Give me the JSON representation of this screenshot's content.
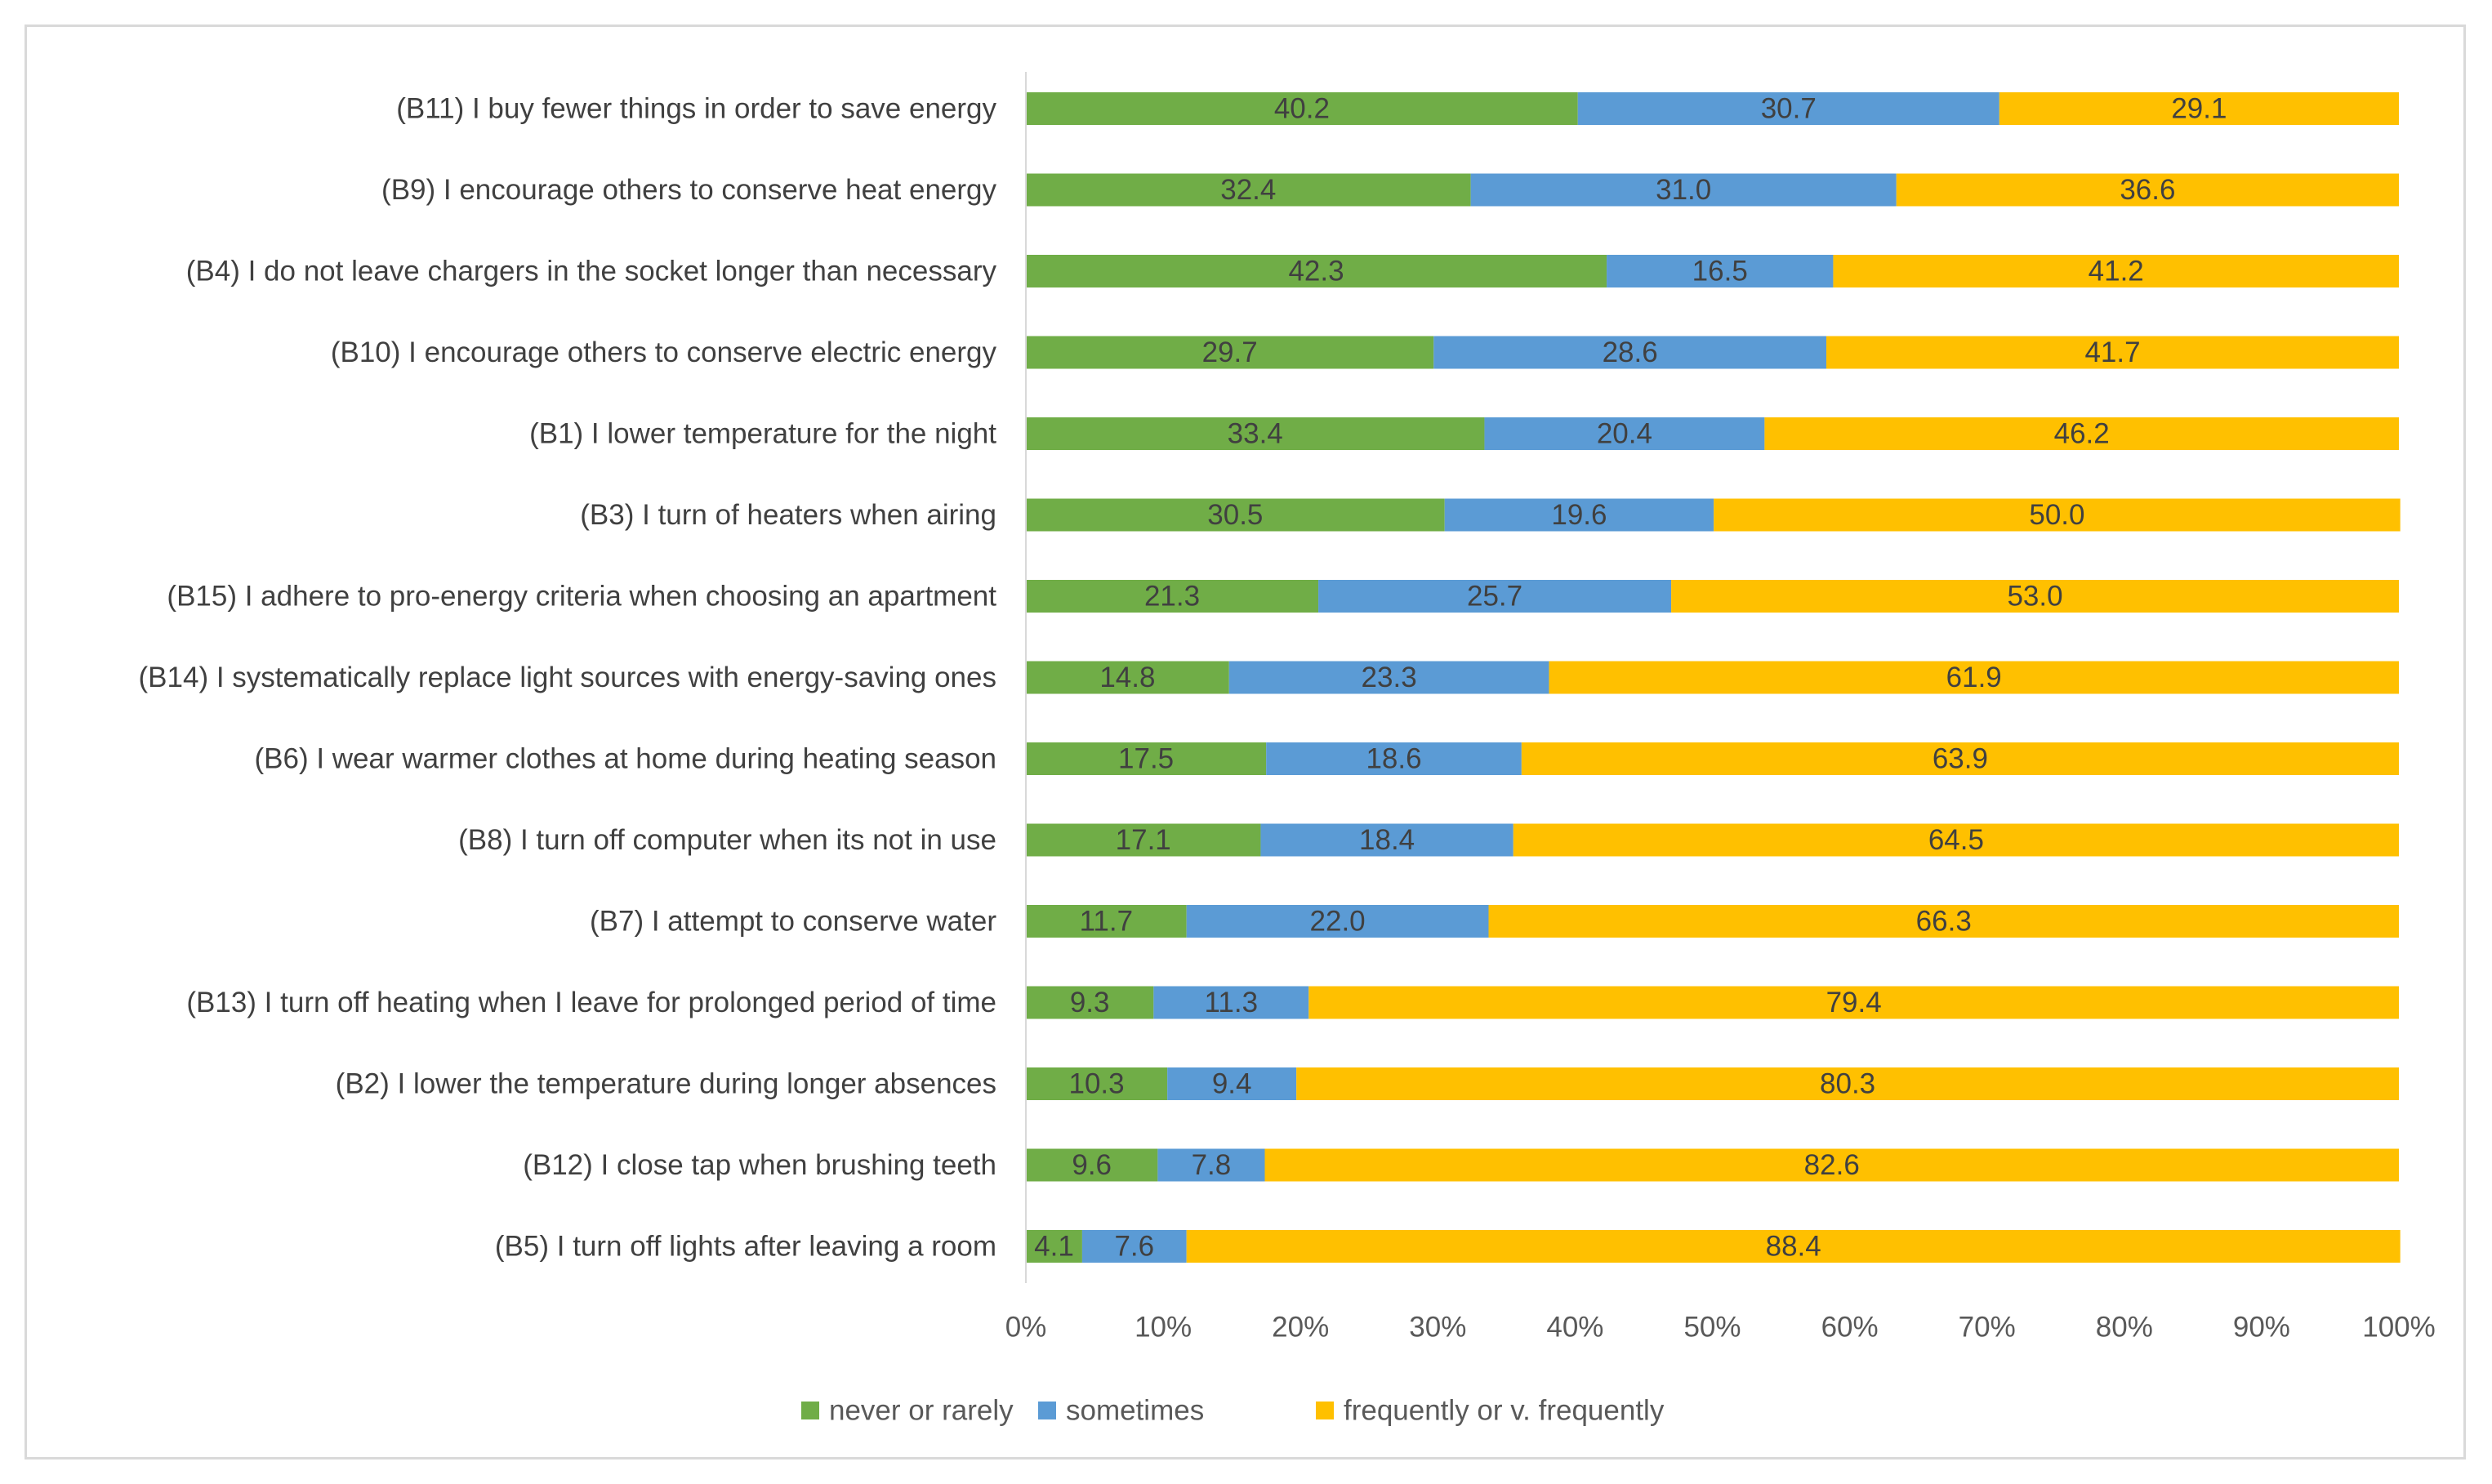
{
  "chart_data": {
    "type": "bar",
    "orientation": "horizontal",
    "stacked": "percent",
    "categories": [
      "(B11) I buy fewer things in order to save energy",
      "(B9) I encourage others to conserve heat energy",
      "(B4) I do not leave chargers in the socket longer than necessary",
      "(B10) I encourage others to conserve electric energy",
      "(B1) I lower temperature for the night",
      "(B3) I turn of heaters when airing",
      "(B15) I adhere to pro-energy criteria when choosing an apartment",
      "(B14) I systematically replace light sources with energy-saving ones",
      "(B6) I wear warmer clothes at home during heating season",
      "(B8) I turn off computer when its not in use",
      "(B7) I attempt to conserve water",
      "(B13) I turn off heating when I leave for prolonged period of time",
      "(B2) I lower the temperature during longer absences",
      "(B12) I close tap when brushing teeth",
      "(B5) I turn off lights after leaving a room"
    ],
    "series": [
      {
        "name": "never or rarely",
        "color": "#70ad47",
        "values": [
          40.2,
          32.4,
          42.3,
          29.7,
          33.4,
          30.5,
          21.3,
          14.8,
          17.5,
          17.1,
          11.7,
          9.3,
          10.3,
          9.6,
          4.1
        ]
      },
      {
        "name": "sometimes",
        "color": "#5b9bd5",
        "values": [
          30.7,
          31.0,
          16.5,
          28.6,
          20.4,
          19.6,
          25.7,
          23.3,
          18.6,
          18.4,
          22.0,
          11.3,
          9.4,
          7.8,
          7.6
        ]
      },
      {
        "name": "frequently or v. frequently",
        "color": "#ffc000",
        "values": [
          29.1,
          36.6,
          41.2,
          41.7,
          46.2,
          50.0,
          53.0,
          61.9,
          63.9,
          64.5,
          66.3,
          79.4,
          80.3,
          82.6,
          88.4
        ]
      }
    ],
    "x_ticks": [
      "0%",
      "10%",
      "20%",
      "30%",
      "40%",
      "50%",
      "60%",
      "70%",
      "80%",
      "90%",
      "100%"
    ],
    "xlim": [
      0,
      100
    ],
    "title": "",
    "xlabel": "",
    "ylabel": "",
    "legend": "bottom",
    "grid": false
  }
}
